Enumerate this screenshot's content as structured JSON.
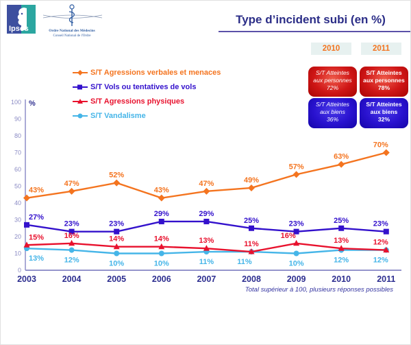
{
  "header": {
    "title": "Type d’incident subi (en %)",
    "ipsos_label": "Ipsos",
    "onm_line1": "Ordre National des Médecins",
    "onm_line2": "Conseil National de l'Ordre"
  },
  "year_tabs": [
    "2010",
    "2011"
  ],
  "summary_boxes": [
    {
      "line1": "S/T Atteintes",
      "line2": "aux personnes",
      "value": "72%"
    },
    {
      "line1": "S/T Atteintes",
      "line2": "aux personnes",
      "value": "78%"
    },
    {
      "line1": "S/T Atteintes",
      "line2": "aux biens",
      "value": "36%"
    },
    {
      "line1": "S/T Atteintes",
      "line2": "aux biens",
      "value": "32%"
    }
  ],
  "footnote": "Total supérieur à 100, plusieurs réponses possibles",
  "colors": {
    "title": "#2B2D87",
    "axis": "#9494CC",
    "tick_labels": "#8B8BC4",
    "year_labels": "#2E2F90",
    "tab_bg": "#E7F1F0",
    "tab_text": "#F4741F",
    "box_red": "#CF1616",
    "box_blue": "#2912CF"
  },
  "chart_data": {
    "type": "line",
    "x": [
      2003,
      2004,
      2005,
      2006,
      2007,
      2008,
      2009,
      2010,
      2011
    ],
    "series": [
      {
        "name": "S/T Agressions verbales et menaces",
        "color": "#F4741F",
        "marker": "diamond",
        "values": [
          43,
          47,
          52,
          43,
          47,
          49,
          57,
          63,
          70
        ],
        "label_position": "above"
      },
      {
        "name": "S/T Vols ou tentatives de vols",
        "color": "#3311CC",
        "marker": "square",
        "values": [
          27,
          23,
          23,
          29,
          29,
          25,
          23,
          25,
          23
        ],
        "label_position": "above"
      },
      {
        "name": "S/T Agressions physiques",
        "color": "#E8112D",
        "marker": "triangle",
        "values": [
          15,
          16,
          14,
          14,
          13,
          11,
          16,
          13,
          12
        ],
        "label_position": "above"
      },
      {
        "name": "S/T Vandalisme",
        "color": "#45B5E8",
        "marker": "circle",
        "values": [
          13,
          12,
          10,
          10,
          11,
          11,
          10,
          12,
          12
        ],
        "label_position": "below"
      }
    ],
    "ylabel": "%",
    "ylim": [
      0,
      100
    ],
    "yticks": [
      0,
      10,
      20,
      30,
      40,
      50,
      60,
      70,
      80,
      90,
      100
    ],
    "grid": false,
    "legend_position": "top-left",
    "data_labels": true
  }
}
